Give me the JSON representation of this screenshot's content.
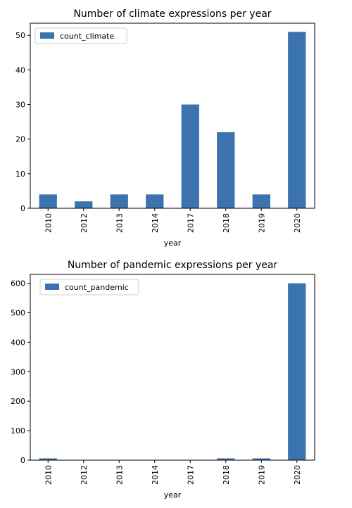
{
  "chart_data": [
    {
      "type": "bar",
      "title": "Number of climate expressions per year",
      "xlabel": "year",
      "ylabel": "",
      "categories": [
        "2010",
        "2012",
        "2013",
        "2014",
        "2017",
        "2018",
        "2019",
        "2020"
      ],
      "series": [
        {
          "name": "count_climate",
          "values": [
            4,
            2,
            4,
            4,
            30,
            22,
            4,
            51
          ]
        }
      ],
      "ylim": [
        0,
        53.5
      ],
      "yticks": [
        0,
        10,
        20,
        30,
        40,
        50
      ],
      "legend": "top-left",
      "grid": false,
      "color": "#3a73ad"
    },
    {
      "type": "bar",
      "title": "Number of pandemic expressions per year",
      "xlabel": "year",
      "ylabel": "",
      "categories": [
        "2010",
        "2012",
        "2013",
        "2014",
        "2017",
        "2018",
        "2019",
        "2020"
      ],
      "series": [
        {
          "name": "count_pandemic",
          "values": [
            6,
            1,
            1,
            1,
            1,
            6,
            6,
            600
          ]
        }
      ],
      "ylim": [
        0,
        630
      ],
      "yticks": [
        0,
        100,
        200,
        300,
        400,
        500,
        600
      ],
      "legend": "top-left",
      "grid": false,
      "color": "#3a73ad"
    }
  ]
}
